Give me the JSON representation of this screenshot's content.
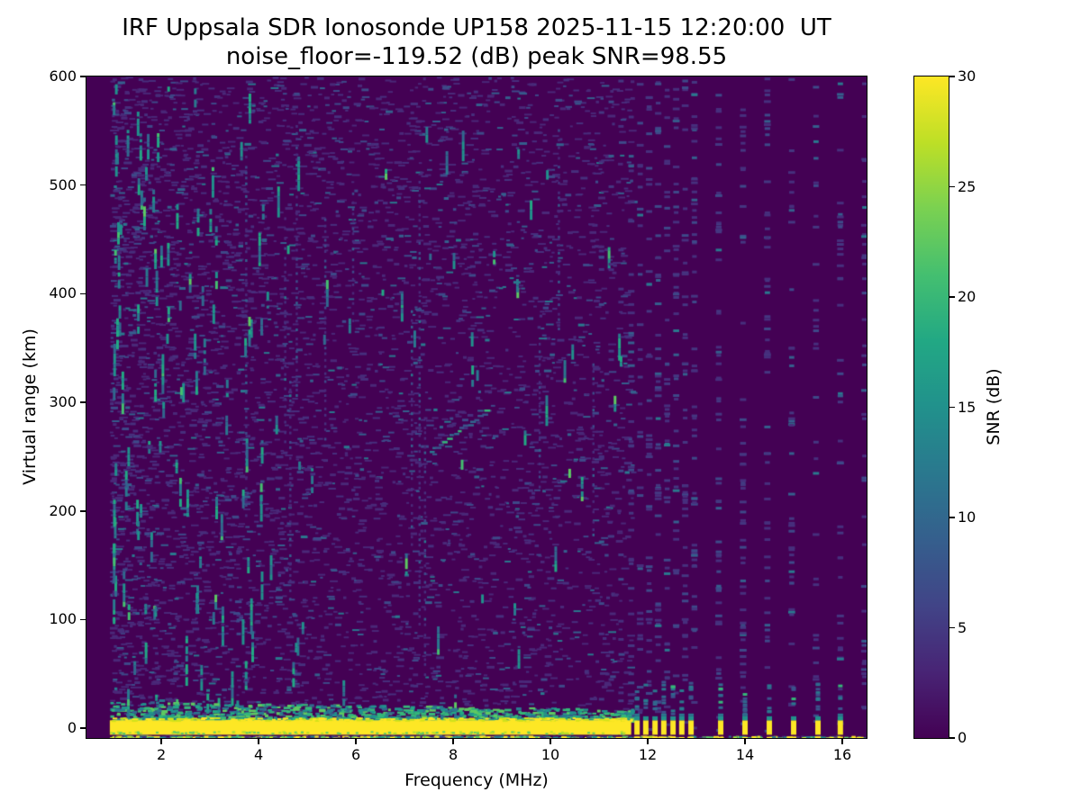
{
  "chart_data": {
    "type": "heatmap",
    "title": "IRF Uppsala SDR Ionosonde UP158 2025-11-15 12:20:00  UT",
    "subtitle": "noise_floor=-119.52 (dB) peak SNR=98.55",
    "station": "UP158",
    "timestamp_ut": "2025-11-15 12:20:00",
    "noise_floor_db": -119.52,
    "peak_snr_db": 98.55,
    "xlabel": "Frequency (MHz)",
    "ylabel": "Virtual range (km)",
    "colorbar_label": "SNR (dB)",
    "colormap": "viridis",
    "xlim": [
      0.46,
      16.5
    ],
    "ylim": [
      -9,
      600
    ],
    "clim": [
      0,
      30
    ],
    "xticks": [
      2,
      4,
      6,
      8,
      10,
      12,
      14,
      16
    ],
    "yticks": [
      0,
      100,
      200,
      300,
      400,
      500,
      600
    ],
    "colorbar_ticks": [
      0,
      5,
      10,
      15,
      20,
      25,
      30
    ],
    "features": {
      "background_color": "#440154",
      "data_freq_range_mhz": [
        0.94,
        16.46
      ],
      "ground_pulse_band": {
        "freq_start_mhz": 0.94,
        "freq_solid_end_mhz": 11.66,
        "range_top_km": 7.3,
        "range_bottom_km": -6,
        "color": "#fde725"
      },
      "discrete_pulse_freqs_mhz": {
        "cluster": [
          11.78,
          11.96,
          12.15,
          12.33,
          12.52,
          12.7,
          12.89
        ],
        "sparse": [
          13.5,
          14.0,
          14.5,
          15.0,
          15.5,
          15.96
        ]
      },
      "echo_trace": {
        "freq_mhz": [
          7.5,
          8.65
        ],
        "virtual_range_km": [
          256,
          293
        ],
        "snr_db_approx": 8
      },
      "noise_columns": {
        "start_mhz": 11.66,
        "cluster_step_mhz": 0.185,
        "cluster_end_mhz": 12.92,
        "sparse_start_mhz": 12.96,
        "sparse_step_mhz": 0.5,
        "sparse_end_mhz": 16.46
      },
      "palettes": {
        "diffuse_noise": [
          "#4a2878",
          "#472f7d",
          "#3e4989",
          "#355f8d",
          "#2a788e"
        ],
        "teal_streaks": [
          "#21918c",
          "#2a788e",
          "#22a884",
          "#31688e",
          "#44bf70",
          "#5ec962"
        ],
        "right_columns": [
          "#472f7d",
          "#453781",
          "#3e4989",
          "#355f8d",
          "#2a788e"
        ],
        "band_fringe": [
          "#35b779",
          "#21918c",
          "#5ec962",
          "#2a788e",
          "#22a884",
          "#31688e"
        ],
        "bottom_row": [
          "#fde725",
          "#b5de2b",
          "#5ec962",
          "#21918c",
          "#2a788e",
          "#46327e"
        ],
        "echo": [
          "#31688e",
          "#2a788e",
          "#3b528b",
          "#35b779"
        ],
        "band_edge": [
          "#fde725",
          "#d2e21b"
        ]
      }
    }
  }
}
